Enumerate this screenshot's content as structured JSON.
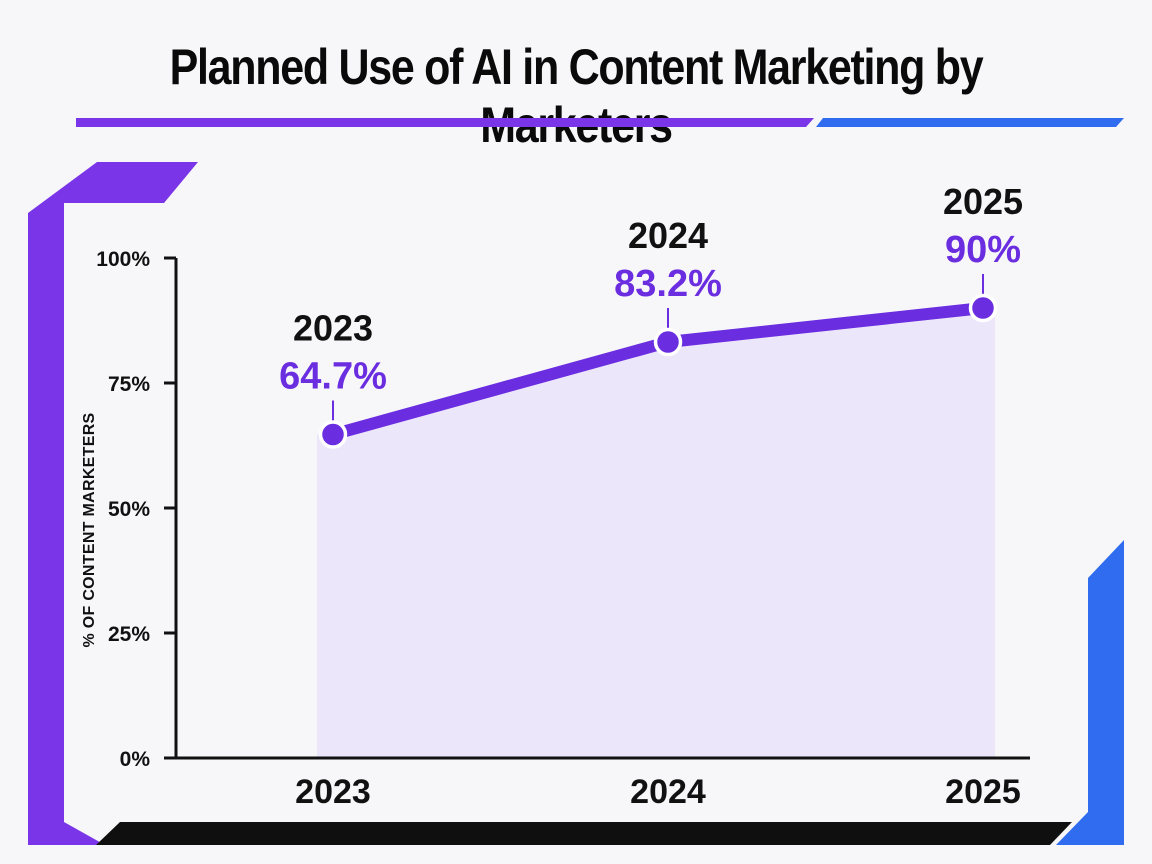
{
  "chart_data": {
    "type": "area",
    "title": "Planned Use of AI in Content Marketing by Marketers",
    "xlabel": "",
    "ylabel": "% OF CONTENT MARKETERS",
    "categories": [
      "2023",
      "2024",
      "2025"
    ],
    "series": [
      {
        "values": [
          64.7,
          83.2,
          90
        ]
      }
    ],
    "data_labels": [
      "64.7%",
      "83.2%",
      "90%"
    ],
    "yticks": [
      "0%",
      "25%",
      "50%",
      "75%",
      "100%"
    ],
    "ylim": [
      0,
      100
    ],
    "grid": false,
    "legend": "none"
  },
  "colors": {
    "line": "#6a2de0",
    "area": "#ece6fb",
    "accent_purple": "#7a35e8",
    "accent_blue": "#2f6cf0",
    "dark": "#0f0f0f"
  }
}
